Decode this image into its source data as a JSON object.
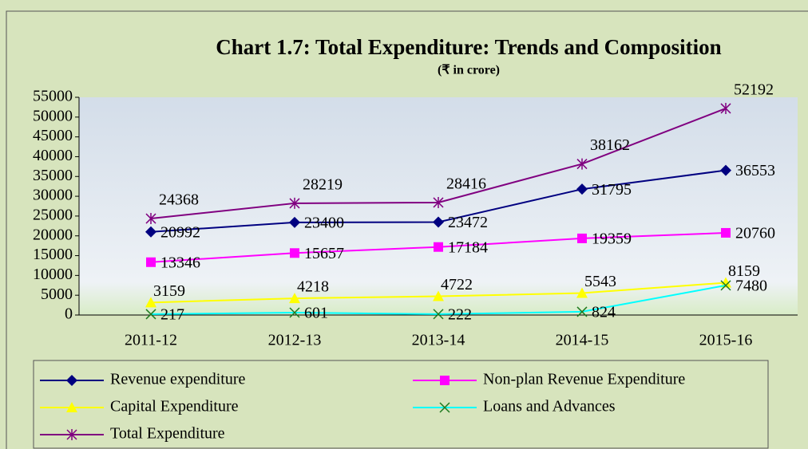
{
  "chart_data": {
    "type": "line",
    "title": "Chart 1.7: Total Expenditure: Trends and Composition",
    "subtitle": "(₹ in crore)",
    "categories": [
      "2011-12",
      "2012-13",
      "2013-14",
      "2014-15",
      "2015-16"
    ],
    "ylim": [
      0,
      55000
    ],
    "yticks": [
      0,
      5000,
      10000,
      15000,
      20000,
      25000,
      30000,
      35000,
      40000,
      45000,
      50000,
      55000
    ],
    "grid": false,
    "legend": "bottom",
    "series": [
      {
        "name": "Revenue expenditure",
        "color": "#000080",
        "marker": "diamond",
        "values": [
          20992,
          23400,
          23472,
          31795,
          36553
        ]
      },
      {
        "name": "Non-plan Revenue Expenditure",
        "color": "#ff00ff",
        "marker": "square",
        "values": [
          13346,
          15657,
          17184,
          19359,
          20760
        ]
      },
      {
        "name": "Capital Expenditure",
        "color": "#ffff00",
        "marker": "triangle",
        "values": [
          3159,
          4218,
          4722,
          5543,
          8159
        ]
      },
      {
        "name": "Loans and Advances",
        "color": "#00ffff",
        "marker": "x",
        "values": [
          217,
          601,
          222,
          824,
          7480
        ]
      },
      {
        "name": "Total Expenditure",
        "color": "#800080",
        "marker": "star",
        "values": [
          24368,
          28219,
          28416,
          38162,
          52192
        ]
      }
    ]
  }
}
